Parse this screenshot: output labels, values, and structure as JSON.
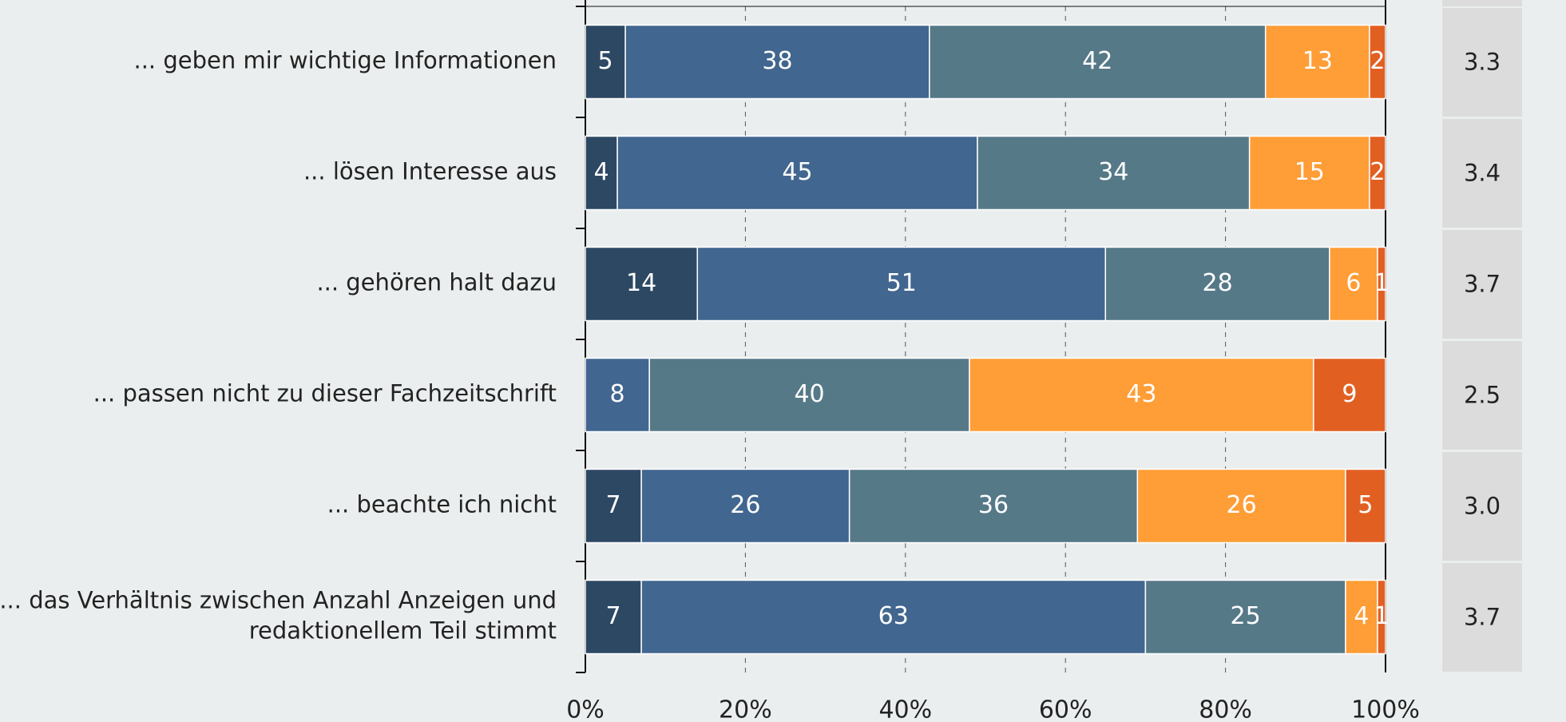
{
  "chart_data": {
    "type": "stacked-bar-horizontal",
    "categories": [
      "... geben mir wichtige Informationen",
      "... lösen Interesse aus",
      "... gehören halt dazu",
      "... passen nicht zu dieser Fachzeitschrift",
      "... beachte ich nicht",
      "... das Verhältnis zwischen Anzahl Anzeigen und\nredaktionellem Teil stimmt"
    ],
    "series": [
      {
        "color": "#2d4863",
        "values": [
          5,
          4,
          14,
          null,
          7,
          7
        ]
      },
      {
        "color": "#41668f",
        "values": [
          38,
          45,
          51,
          8,
          26,
          63
        ]
      },
      {
        "color": "#567988",
        "values": [
          42,
          34,
          28,
          40,
          36,
          25
        ]
      },
      {
        "color": "#ff9d36",
        "values": [
          13,
          15,
          6,
          43,
          26,
          4
        ]
      },
      {
        "color": "#e25f22",
        "values": [
          2,
          2,
          1,
          9,
          5,
          1
        ]
      }
    ],
    "xlim": [
      0,
      100
    ],
    "xticks": [
      {
        "value": 0,
        "label": "0%"
      },
      {
        "value": 20,
        "label": "20%"
      },
      {
        "value": 40,
        "label": "40%"
      },
      {
        "value": 60,
        "label": "60%"
      },
      {
        "value": 80,
        "label": "80%"
      },
      {
        "value": 100,
        "label": "100%"
      }
    ],
    "grid": true,
    "means": {
      "values": [
        3.3,
        3.4,
        3.7,
        2.5,
        3.0,
        3.7
      ],
      "value_labels": [
        "3.3",
        "3.4",
        "3.7",
        "2.5",
        "3.0",
        "3.7"
      ]
    }
  }
}
